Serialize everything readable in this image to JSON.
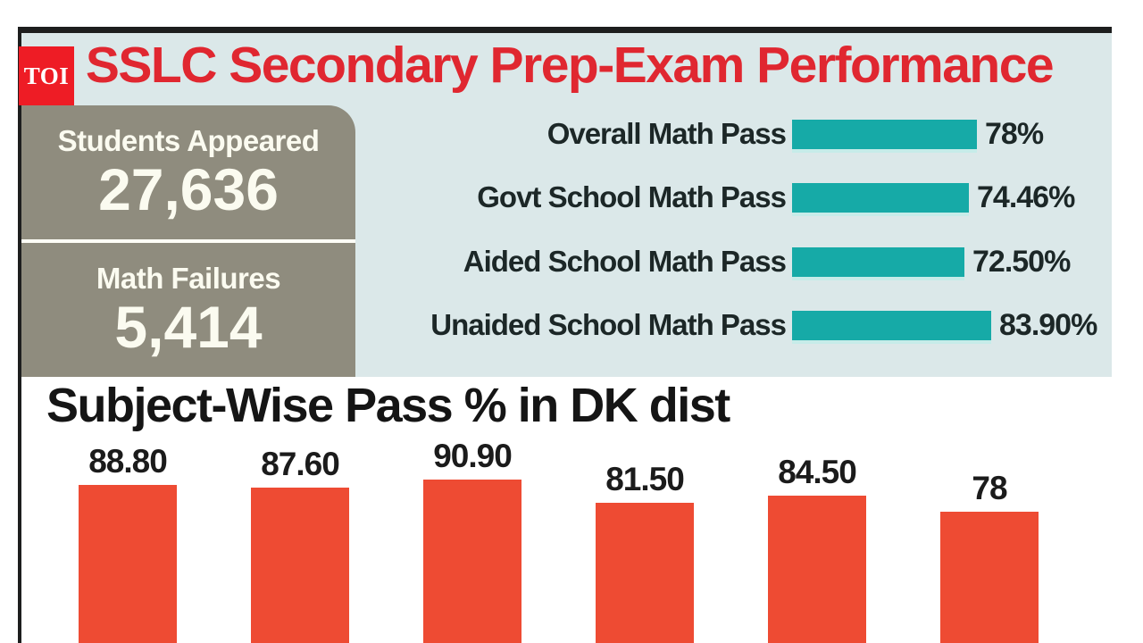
{
  "brand": {
    "logo_text": "TOI",
    "logo_color": "#ee1c25"
  },
  "header": {
    "title": "SSLC Secondary Prep-Exam Performance",
    "title_color": "#e02730"
  },
  "stats": [
    {
      "label": "Students Appeared",
      "value": "27,636"
    },
    {
      "label": "Math Failures",
      "value": "5,414"
    }
  ],
  "colors": {
    "panel_background": "#dbe8e9",
    "stat_box": "#8f8c7e",
    "frame": "#1d1e1e",
    "teal_bar": "#16aaa7",
    "teal_bar_highlight": "#c6ece9",
    "orange_bar": "#ee4b33",
    "dark_text": "#1c2727"
  },
  "chart_data": [
    {
      "type": "bar",
      "orientation": "horizontal",
      "categories": [
        "Overall Math Pass",
        "Govt School Math Pass",
        "Aided School Math Pass",
        "Unaided School Math Pass"
      ],
      "values": [
        78,
        74.46,
        72.5,
        83.9
      ],
      "value_labels": [
        "78%",
        "74.46%",
        "72.50%",
        "83.90%"
      ],
      "bar_color": "#16aaa7",
      "axis_range": [
        0,
        100
      ],
      "grid": false,
      "legend": false
    },
    {
      "type": "bar",
      "orientation": "vertical",
      "title": "Subject-Wise Pass % in DK dist",
      "values": [
        88.8,
        87.6,
        90.9,
        81.5,
        84.5,
        78
      ],
      "value_labels": [
        "88.80",
        "87.60",
        "90.90",
        "81.50",
        "84.50",
        "78"
      ],
      "bar_color": "#ee4b33",
      "note": "bars cropped at bottom edge of image; category labels not visible",
      "grid": false,
      "legend": false
    }
  ]
}
